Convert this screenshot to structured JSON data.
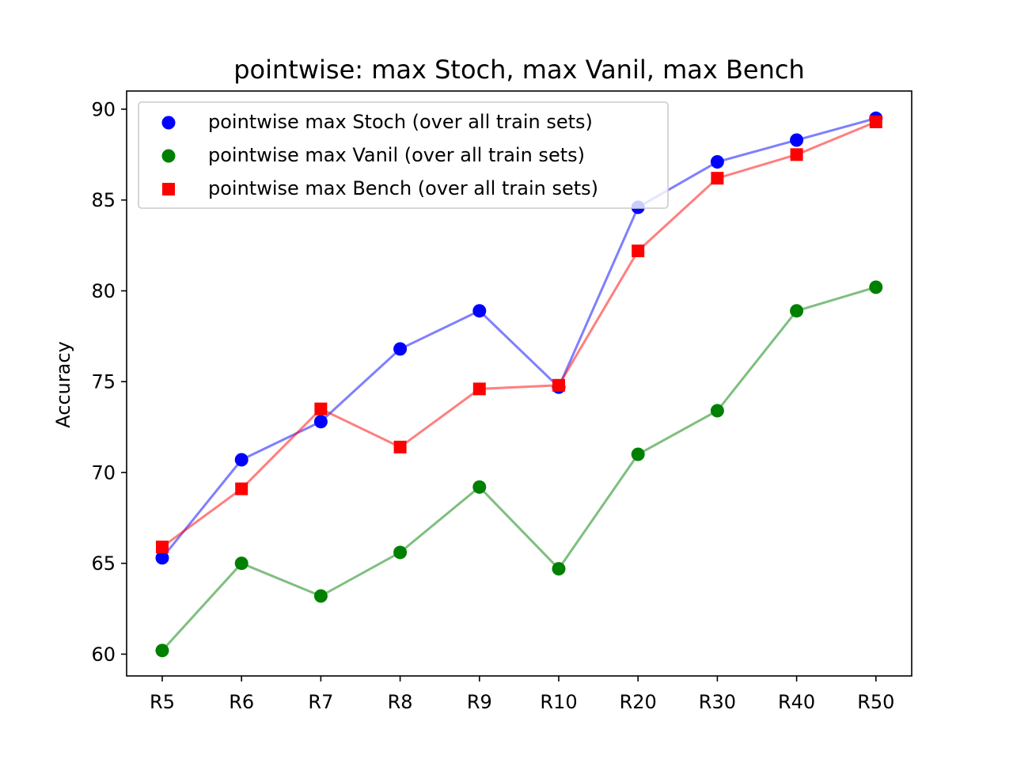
{
  "chart_data": {
    "type": "line",
    "title": "pointwise: max Stoch, max Vanil, max Bench",
    "xlabel": "",
    "ylabel": "Accuracy",
    "categories": [
      "R5",
      "R6",
      "R7",
      "R8",
      "R9",
      "R10",
      "R20",
      "R30",
      "R40",
      "R50"
    ],
    "yticks": [
      60,
      65,
      70,
      75,
      80,
      85,
      90
    ],
    "ylim": [
      58.8,
      91.0
    ],
    "grid": false,
    "legend_position": "upper-left",
    "series": [
      {
        "name": "pointwise max Stoch (over all train sets)",
        "color": "#0000ff",
        "marker": "circle",
        "values": [
          65.3,
          70.7,
          72.8,
          76.8,
          78.9,
          74.7,
          84.6,
          87.1,
          88.3,
          89.5
        ]
      },
      {
        "name": "pointwise max Vanil (over all train sets)",
        "color": "#008000",
        "marker": "circle",
        "values": [
          60.2,
          65.0,
          63.2,
          65.6,
          69.2,
          64.7,
          71.0,
          73.4,
          78.9,
          80.2
        ]
      },
      {
        "name": "pointwise max Bench (over all train sets)",
        "color": "#ff0000",
        "marker": "square",
        "values": [
          65.9,
          69.1,
          73.5,
          71.4,
          74.6,
          74.8,
          82.2,
          86.2,
          87.5,
          89.3
        ]
      }
    ]
  }
}
